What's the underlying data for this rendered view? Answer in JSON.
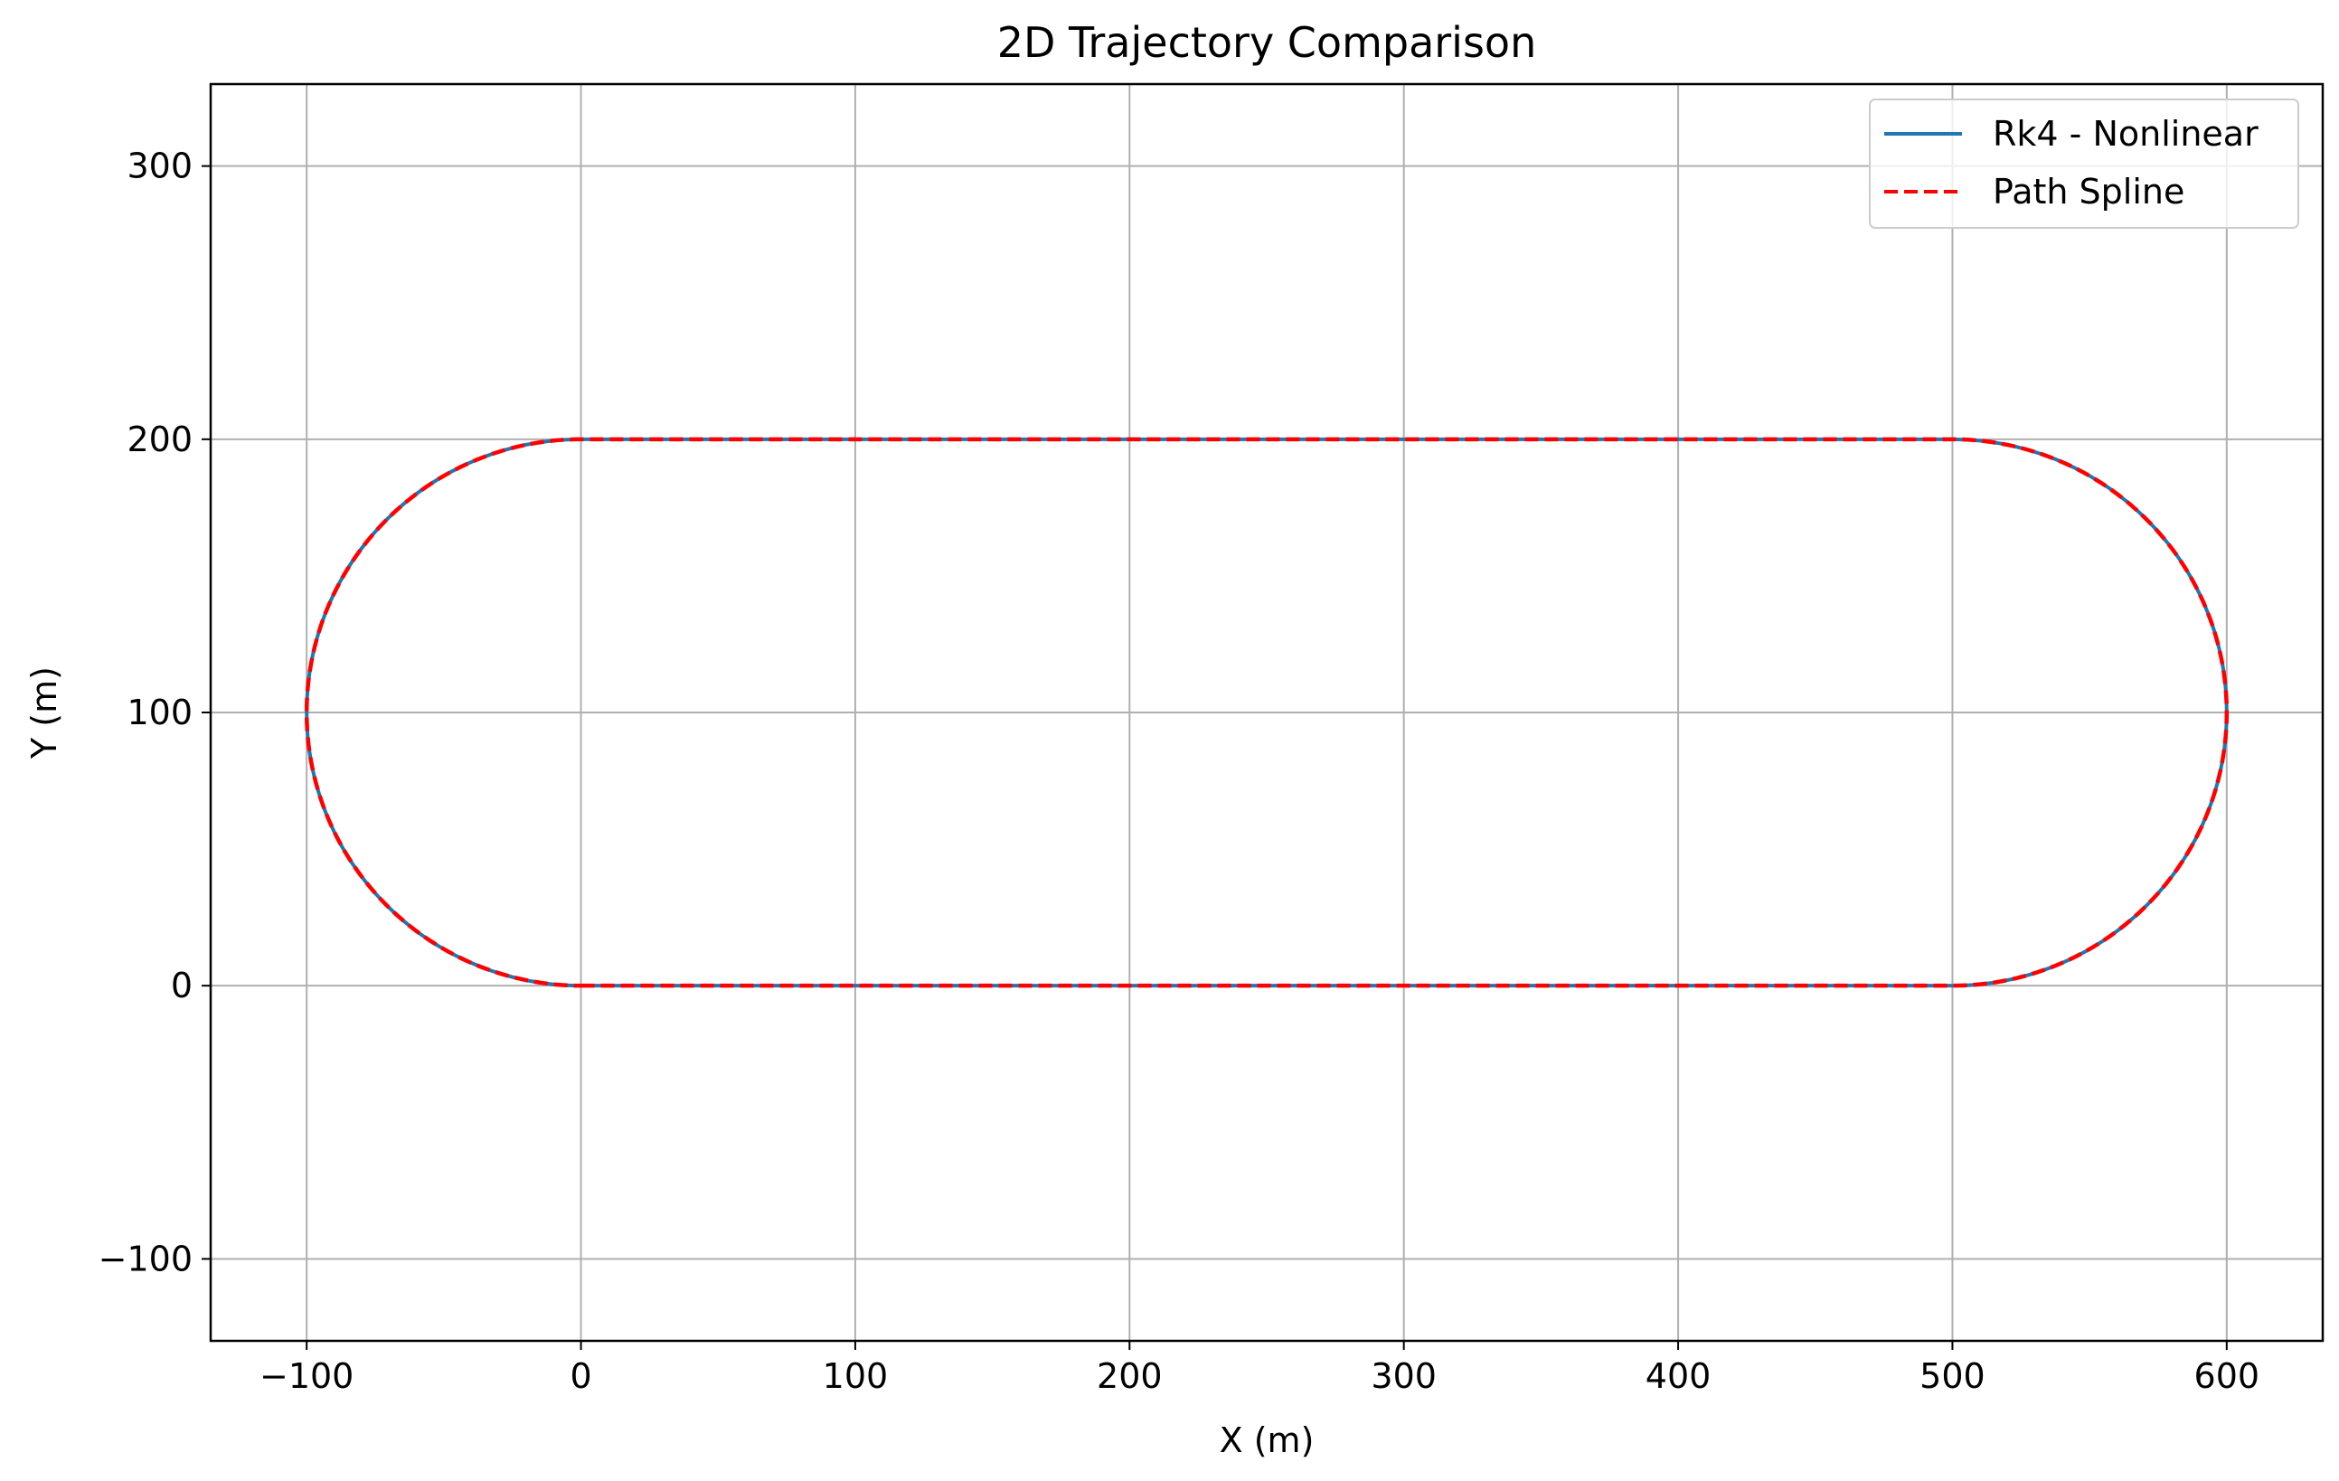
{
  "chart_data": {
    "type": "line",
    "title": "2D Trajectory Comparison",
    "xlabel": "X (m)",
    "ylabel": "Y (m)",
    "xlim": [
      -135,
      635
    ],
    "ylim": [
      -130,
      330
    ],
    "xticks": [
      -100,
      0,
      100,
      200,
      300,
      400,
      500,
      600
    ],
    "xtick_labels": [
      "−100",
      "0",
      "100",
      "200",
      "300",
      "400",
      "500",
      "600"
    ],
    "yticks": [
      -100,
      0,
      100,
      200,
      300
    ],
    "ytick_labels": [
      "−100",
      "0",
      "100",
      "200",
      "300"
    ],
    "grid": true,
    "legend_position": "top-right",
    "shape": {
      "kind": "stadium",
      "straight_x_range": [
        0,
        500
      ],
      "y_bottom": 0,
      "y_top": 200,
      "center_y": 100,
      "turn_radius": 100,
      "left_extreme_x": -100,
      "right_extreme_x": 600
    },
    "series": [
      {
        "name": "Rk4 - Nonlinear",
        "color": "#1f77b4",
        "style": "solid",
        "x": [
          0,
          100,
          200,
          300,
          400,
          500,
          529.3,
          550,
          570.7,
          586.6,
          596.6,
          600,
          596.6,
          586.6,
          570.7,
          550,
          529.3,
          500,
          400,
          300,
          200,
          100,
          0,
          -29.3,
          -50,
          -70.7,
          -86.6,
          -96.6,
          -100,
          -96.6,
          -86.6,
          -70.7,
          -50,
          -29.3,
          0
        ],
        "y": [
          0,
          0,
          0,
          0,
          0,
          0,
          4.4,
          13.4,
          29.3,
          50,
          74.1,
          100,
          125.9,
          150,
          170.7,
          186.6,
          195.6,
          200,
          200,
          200,
          200,
          200,
          200,
          195.6,
          186.6,
          170.7,
          150,
          125.9,
          100,
          74.1,
          50,
          29.3,
          13.4,
          4.4,
          0
        ]
      },
      {
        "name": "Path Spline",
        "color": "#ff0000",
        "style": "dashed",
        "x": [
          0,
          100,
          200,
          300,
          400,
          500,
          529.3,
          550,
          570.7,
          586.6,
          596.6,
          600,
          596.6,
          586.6,
          570.7,
          550,
          529.3,
          500,
          400,
          300,
          200,
          100,
          0,
          -29.3,
          -50,
          -70.7,
          -86.6,
          -96.6,
          -100,
          -96.6,
          -86.6,
          -70.7,
          -50,
          -29.3,
          0
        ],
        "y": [
          0,
          0,
          0,
          0,
          0,
          0,
          4.4,
          13.4,
          29.3,
          50,
          74.1,
          100,
          125.9,
          150,
          170.7,
          186.6,
          195.6,
          200,
          200,
          200,
          200,
          200,
          200,
          195.6,
          186.6,
          170.7,
          150,
          125.9,
          100,
          74.1,
          50,
          29.3,
          13.4,
          4.4,
          0
        ]
      }
    ]
  }
}
